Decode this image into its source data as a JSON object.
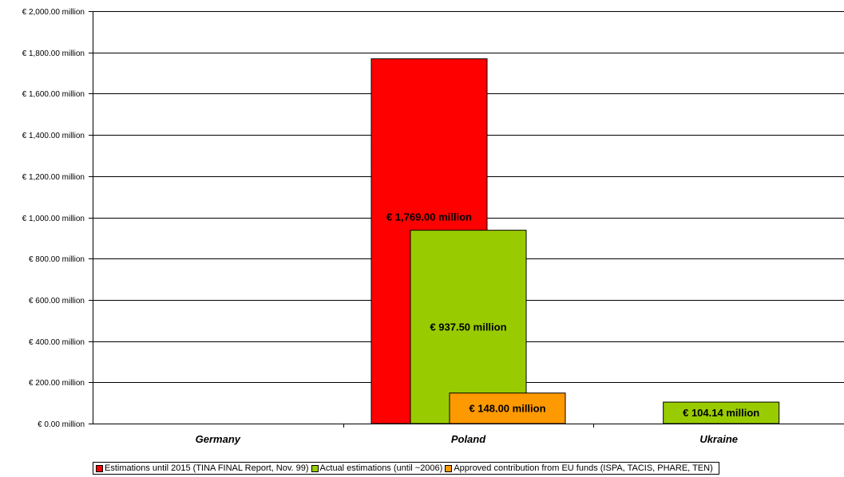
{
  "chart_data": {
    "type": "bar",
    "title": "",
    "xlabel": "",
    "ylabel": "",
    "categories": [
      "Germany",
      "Poland",
      "Ukraine"
    ],
    "ylim": [
      0,
      2000
    ],
    "yticks": [
      0,
      200,
      400,
      600,
      800,
      1000,
      1200,
      1400,
      1600,
      1800,
      2000
    ],
    "ytick_labels": [
      "€ 0.00 million",
      "€ 200.00 million",
      "€ 400.00 million",
      "€ 600.00 million",
      "€ 800.00 million",
      "€ 1,000.00 million",
      "€ 1,200.00 million",
      "€ 1,400.00 million",
      "€ 1,600.00 million",
      "€ 1,800.00 million",
      "€ 2,000.00 million"
    ],
    "grid": true,
    "legend_position": "bottom",
    "series": [
      {
        "name": "Estimations until 2015 (TINA FINAL Report, Nov. 99)",
        "color": "#ff0000",
        "values": [
          null,
          1769.0,
          null
        ],
        "labels": [
          null,
          "€ 1,769.00 million",
          null
        ]
      },
      {
        "name": "Actual estimations (until ~2006)",
        "color": "#99cc00",
        "values": [
          null,
          937.5,
          104.14
        ],
        "labels": [
          null,
          "€ 937.50 million",
          "€ 104.14 million"
        ]
      },
      {
        "name": "Approved contribution from EU funds (ISPA, TACIS, PHARE, TEN)",
        "color": "#ff9900",
        "values": [
          null,
          148.0,
          null
        ],
        "labels": [
          null,
          "€ 148.00 million",
          null
        ]
      }
    ]
  }
}
